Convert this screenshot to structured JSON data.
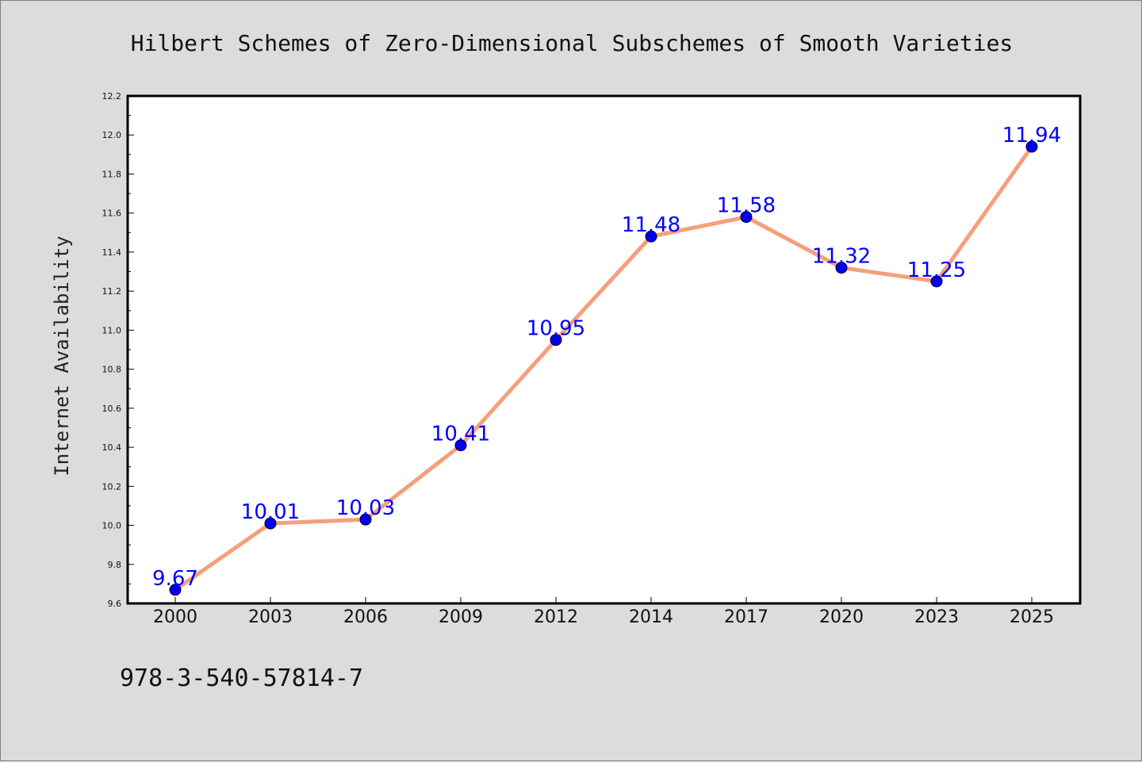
{
  "chart_data": {
    "type": "line",
    "title": "Hilbert Schemes of Zero-Dimensional Subschemes of Smooth Varieties",
    "ylabel": "Internet Availability",
    "categories": [
      "2000",
      "2003",
      "2006",
      "2009",
      "2012",
      "2014",
      "2017",
      "2020",
      "2023",
      "2025"
    ],
    "values": [
      9.67,
      10.01,
      10.03,
      10.41,
      10.95,
      11.48,
      11.58,
      11.32,
      11.25,
      11.94
    ],
    "data_labels": [
      "9.67",
      "10.01",
      "10.03",
      "10.41",
      "10.95",
      "11.48",
      "11.58",
      "11.32",
      "11.25",
      "11.94"
    ],
    "ylim": [
      9.6,
      12.2
    ],
    "yticks": [
      "9.6",
      "9.8",
      "10.0",
      "10.2",
      "10.4",
      "10.6",
      "10.8",
      "11.0",
      "11.2",
      "11.4",
      "11.6",
      "11.8",
      "12.0",
      "12.2"
    ],
    "grid": false,
    "line_color": "#f4a07c",
    "marker_color": "#0000ee",
    "label_color": "#0000ff"
  },
  "footer": {
    "isbn": "978-3-540-57814-7"
  }
}
